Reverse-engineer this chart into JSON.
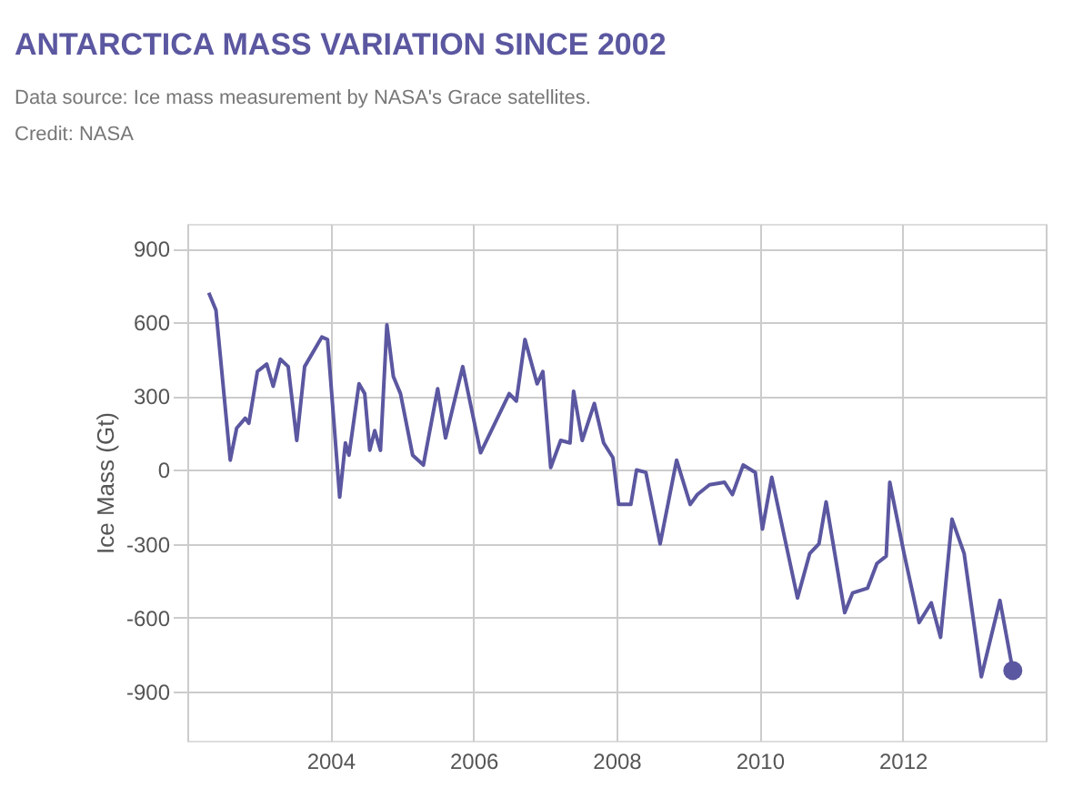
{
  "chart_data": {
    "type": "line",
    "title": "ANTARCTICA MASS VARIATION SINCE 2002",
    "annotations": [
      "Data source: Ice mass measurement by NASA's Grace satellites.",
      "Credit: NASA"
    ],
    "ylabel": "Ice Mass (Gt)",
    "xlim": [
      2002,
      2014
    ],
    "xticks": [
      {
        "value": 2002,
        "label": null
      },
      2004,
      2006,
      2008,
      2010,
      2012,
      {
        "value": 2014,
        "label": null
      }
    ],
    "ylim": [
      -1100,
      1000
    ],
    "yticks": [
      -900,
      -600,
      -300,
      0,
      300,
      600,
      900
    ],
    "grid": true,
    "line_style": "solid",
    "series": [
      {
        "marker": "none",
        "color": "#5b57a0",
        "x": [
          2002.3,
          2002.4,
          2002.6,
          2002.69,
          2002.81,
          2002.86,
          2002.98,
          2003.11,
          2003.2,
          2003.3,
          2003.41,
          2003.53,
          2003.64,
          2003.88,
          2003.96,
          2004.13,
          2004.21,
          2004.26,
          2004.4,
          2004.48,
          2004.55,
          2004.62,
          2004.7,
          2004.79,
          2004.88,
          2004.98,
          2005.15,
          2005.3,
          2005.5,
          2005.61,
          2005.85,
          2006.1,
          2006.5,
          2006.6,
          2006.72,
          2006.89,
          2006.97,
          2007.08,
          2007.22,
          2007.35,
          2007.4,
          2007.52,
          2007.69,
          2007.82,
          2007.95,
          2008.03,
          2008.2,
          2008.28,
          2008.41,
          2008.61,
          2008.84,
          2009.03,
          2009.13,
          2009.3,
          2009.51,
          2009.62,
          2009.77,
          2009.94,
          2010.04,
          2010.17,
          2010.53,
          2010.7,
          2010.83,
          2010.93,
          2011.19,
          2011.3,
          2011.51,
          2011.64,
          2011.77,
          2011.82,
          2012.02,
          2012.23,
          2012.4,
          2012.53,
          2012.69,
          2012.86,
          2013.1,
          2013.36,
          2013.54
        ],
        "values": [
          720,
          650,
          40,
          170,
          210,
          190,
          400,
          430,
          340,
          450,
          420,
          120,
          420,
          540,
          530,
          -110,
          110,
          60,
          350,
          310,
          80,
          160,
          80,
          590,
          380,
          310,
          60,
          20,
          330,
          130,
          420,
          70,
          310,
          280,
          530,
          350,
          400,
          10,
          120,
          110,
          320,
          120,
          270,
          110,
          50,
          -140,
          -140,
          0,
          -10,
          -300,
          40,
          -140,
          -100,
          -60,
          -50,
          -100,
          20,
          -10,
          -240,
          -30,
          -520,
          -340,
          -300,
          -130,
          -580,
          -500,
          -480,
          -380,
          -350,
          -50,
          -340,
          -620,
          -540,
          -680,
          -200,
          -340,
          -840,
          -530,
          -815
        ]
      },
      {
        "type": "scatter",
        "marker": "circle",
        "color": "#5b57a0",
        "x": [
          2013.54
        ],
        "values": [
          -815
        ]
      }
    ]
  }
}
